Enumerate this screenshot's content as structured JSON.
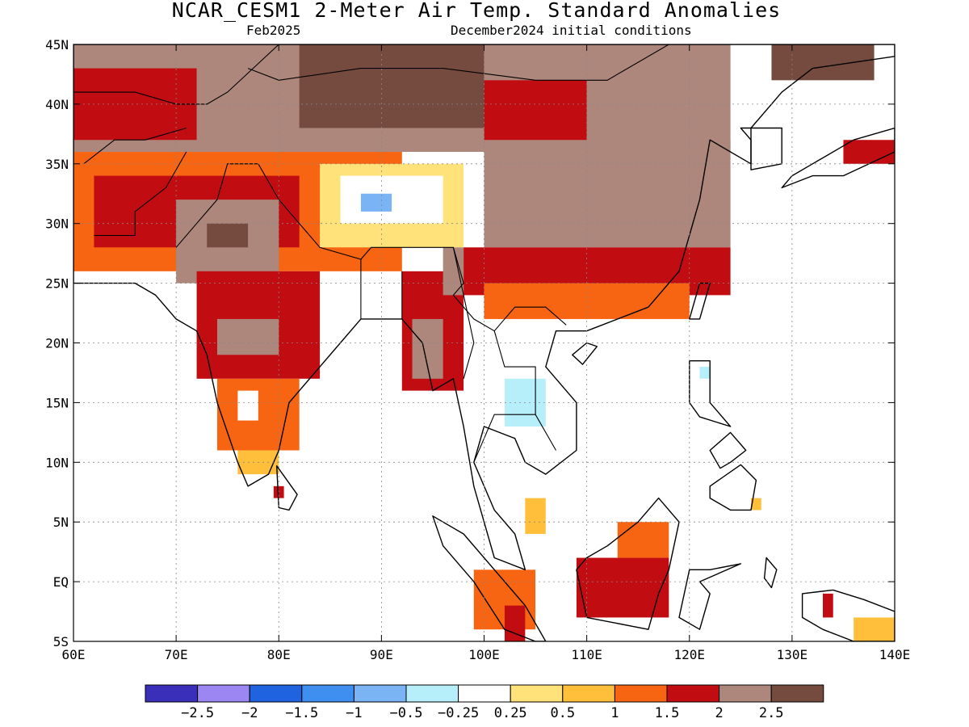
{
  "title": "NCAR_CESM1 2-Meter Air Temp. Standard Anomalies",
  "subtitle_left": "Feb2025",
  "subtitle_right": "December2024 initial conditions",
  "chart_data": {
    "type": "heatmap",
    "variable": "2-Meter Air Temperature Standard Anomaly",
    "lon_range": [
      60,
      140
    ],
    "lat_range": [
      -5,
      45
    ],
    "x_ticks": [
      {
        "value": 60,
        "label": "60E"
      },
      {
        "value": 70,
        "label": "70E"
      },
      {
        "value": 80,
        "label": "80E"
      },
      {
        "value": 90,
        "label": "90E"
      },
      {
        "value": 100,
        "label": "100E"
      },
      {
        "value": 110,
        "label": "110E"
      },
      {
        "value": 120,
        "label": "120E"
      },
      {
        "value": 130,
        "label": "130E"
      },
      {
        "value": 140,
        "label": "140E"
      }
    ],
    "y_ticks": [
      {
        "value": 45,
        "label": "45N"
      },
      {
        "value": 40,
        "label": "40N"
      },
      {
        "value": 35,
        "label": "35N"
      },
      {
        "value": 30,
        "label": "30N"
      },
      {
        "value": 25,
        "label": "25N"
      },
      {
        "value": 20,
        "label": "20N"
      },
      {
        "value": 15,
        "label": "15N"
      },
      {
        "value": 10,
        "label": "10N"
      },
      {
        "value": 5,
        "label": "5N"
      },
      {
        "value": 0,
        "label": "EQ"
      },
      {
        "value": -5,
        "label": "5S"
      }
    ],
    "grid": true,
    "colorbar": {
      "colors": [
        "#3a2fb8",
        "#9b86f2",
        "#1f63e0",
        "#3f8ff0",
        "#7ab4f5",
        "#b6effa",
        "#ffffff",
        "#ffe27a",
        "#ffbf3a",
        "#f76513",
        "#c10d12",
        "#ae877c",
        "#754b40"
      ],
      "labels": [
        "-2.5",
        "-2",
        "-1.5",
        "-1",
        "-0.5",
        "-0.25",
        "0.25",
        "0.5",
        "1",
        "1.5",
        "2",
        "2.5"
      ]
    },
    "regions": [
      {
        "level": 2,
        "lon": [
          60,
          124
        ],
        "lat": [
          36,
          45
        ]
      },
      {
        "level": 2.5,
        "lon": [
          82,
          100
        ],
        "lat": [
          38,
          45
        ]
      },
      {
        "level": 2.5,
        "lon": [
          128,
          138
        ],
        "lat": [
          42,
          45
        ]
      },
      {
        "level": 1.5,
        "lon": [
          60,
          72
        ],
        "lat": [
          37,
          43
        ]
      },
      {
        "level": 1.5,
        "lon": [
          100,
          110
        ],
        "lat": [
          36,
          42
        ]
      },
      {
        "level": 1,
        "lon": [
          60,
          92
        ],
        "lat": [
          26,
          36
        ]
      },
      {
        "level": 1.5,
        "lon": [
          62,
          82
        ],
        "lat": [
          28,
          34
        ]
      },
      {
        "level": 2,
        "lon": [
          70,
          80
        ],
        "lat": [
          25,
          32
        ]
      },
      {
        "level": 2.5,
        "lon": [
          73,
          77
        ],
        "lat": [
          28,
          30
        ]
      },
      {
        "level": 0.25,
        "lon": [
          84,
          98
        ],
        "lat": [
          28,
          35
        ]
      },
      {
        "level": -0.25,
        "lon": [
          86,
          96
        ],
        "lat": [
          30,
          34
        ]
      },
      {
        "level": -1,
        "lon": [
          88,
          91
        ],
        "lat": [
          31,
          32.5
        ]
      },
      {
        "level": 2,
        "lon": [
          100,
          124
        ],
        "lat": [
          28,
          37
        ]
      },
      {
        "level": 1.5,
        "lon": [
          98,
          124
        ],
        "lat": [
          24,
          28
        ]
      },
      {
        "level": 1,
        "lon": [
          100,
          120
        ],
        "lat": [
          22,
          25
        ]
      },
      {
        "level": 1.5,
        "lon": [
          72,
          84
        ],
        "lat": [
          17,
          26
        ]
      },
      {
        "level": 2,
        "lon": [
          74,
          80
        ],
        "lat": [
          19,
          22
        ]
      },
      {
        "level": 1,
        "lon": [
          74,
          82
        ],
        "lat": [
          11,
          17
        ]
      },
      {
        "level": -0.25,
        "lon": [
          76,
          78
        ],
        "lat": [
          13.5,
          16
        ]
      },
      {
        "level": 0.5,
        "lon": [
          76,
          80
        ],
        "lat": [
          9,
          11
        ]
      },
      {
        "level": 1.5,
        "lon": [
          92,
          98
        ],
        "lat": [
          16,
          26
        ]
      },
      {
        "level": 2,
        "lon": [
          93,
          96
        ],
        "lat": [
          17,
          22
        ]
      },
      {
        "level": 2,
        "lon": [
          96,
          98
        ],
        "lat": [
          24,
          28
        ]
      },
      {
        "level": -0.25,
        "lon": [
          100,
          108
        ],
        "lat": [
          11,
          21
        ]
      },
      {
        "level": -0.5,
        "lon": [
          102,
          106
        ],
        "lat": [
          13,
          17
        ]
      },
      {
        "level": 1.5,
        "lon": [
          109,
          118
        ],
        "lat": [
          -3,
          2
        ]
      },
      {
        "level": 1,
        "lon": [
          113,
          118
        ],
        "lat": [
          2,
          5
        ]
      },
      {
        "level": 0.5,
        "lon": [
          104,
          106
        ],
        "lat": [
          4,
          7
        ]
      },
      {
        "level": 1,
        "lon": [
          99,
          105
        ],
        "lat": [
          -4,
          1
        ]
      },
      {
        "level": 1.5,
        "lon": [
          102,
          104
        ],
        "lat": [
          -5,
          -2
        ]
      },
      {
        "level": 0.5,
        "lon": [
          136,
          140
        ],
        "lat": [
          -5,
          -3
        ]
      },
      {
        "level": 1.5,
        "lon": [
          133,
          134
        ],
        "lat": [
          -3,
          -1
        ]
      },
      {
        "level": 1.5,
        "lon": [
          79.5,
          80.5
        ],
        "lat": [
          7,
          8
        ]
      },
      {
        "level": 1.5,
        "lon": [
          135,
          140
        ],
        "lat": [
          35,
          37
        ]
      },
      {
        "level": 0.5,
        "lon": [
          126,
          127
        ],
        "lat": [
          6,
          7
        ]
      },
      {
        "level": -0.5,
        "lon": [
          121,
          122
        ],
        "lat": [
          17,
          18
        ]
      }
    ],
    "landmasses": [
      {
        "name": "asia",
        "coords": [
          [
            60,
            45
          ],
          [
            140,
            45
          ],
          [
            140,
            44
          ],
          [
            132,
            43
          ],
          [
            129,
            41
          ],
          [
            126,
            38
          ],
          [
            126,
            35
          ],
          [
            122,
            37
          ],
          [
            121,
            32
          ],
          [
            119,
            26
          ],
          [
            116,
            23
          ],
          [
            110,
            21
          ],
          [
            107,
            21
          ],
          [
            106,
            18
          ],
          [
            109,
            15
          ],
          [
            109,
            11
          ],
          [
            106,
            9
          ],
          [
            104,
            10
          ],
          [
            103,
            12
          ],
          [
            100,
            13
          ],
          [
            99,
            10
          ],
          [
            101,
            6
          ],
          [
            103,
            4
          ],
          [
            104,
            1
          ],
          [
            101,
            2
          ],
          [
            99,
            8
          ],
          [
            98,
            13
          ],
          [
            97,
            17
          ],
          [
            95,
            16
          ],
          [
            94,
            20
          ],
          [
            92,
            22
          ],
          [
            88,
            22
          ],
          [
            86,
            20
          ],
          [
            84,
            18
          ],
          [
            81,
            15
          ],
          [
            80,
            11
          ],
          [
            79,
            9
          ],
          [
            77,
            8
          ],
          [
            76,
            10
          ],
          [
            74,
            15
          ],
          [
            73,
            19
          ],
          [
            72,
            21
          ],
          [
            70,
            22
          ],
          [
            68,
            24
          ],
          [
            66,
            25
          ],
          [
            62,
            25
          ],
          [
            60,
            25
          ]
        ]
      },
      {
        "name": "korea",
        "coords": [
          [
            125,
            38
          ],
          [
            129,
            38
          ],
          [
            129,
            35
          ],
          [
            126,
            34.5
          ],
          [
            126,
            37
          ]
        ]
      },
      {
        "name": "japan",
        "coords": [
          [
            129,
            33
          ],
          [
            132,
            34
          ],
          [
            135,
            34
          ],
          [
            140,
            36
          ],
          [
            140,
            38
          ],
          [
            136,
            37
          ],
          [
            132,
            35
          ],
          [
            130,
            34
          ]
        ]
      },
      {
        "name": "taiwan",
        "coords": [
          [
            120,
            22
          ],
          [
            121,
            25
          ],
          [
            122,
            25
          ],
          [
            121,
            22
          ]
        ]
      },
      {
        "name": "hainan",
        "coords": [
          [
            108.6,
            19
          ],
          [
            110,
            20
          ],
          [
            111,
            19.7
          ],
          [
            109.6,
            18.2
          ]
        ]
      },
      {
        "name": "sri-lanka",
        "coords": [
          [
            79.8,
            9.7
          ],
          [
            81.8,
            7.3
          ],
          [
            81,
            6
          ],
          [
            80,
            6.2
          ]
        ]
      },
      {
        "name": "borneo",
        "coords": [
          [
            109,
            1
          ],
          [
            110,
            2
          ],
          [
            112,
            3
          ],
          [
            115,
            5
          ],
          [
            117,
            7
          ],
          [
            119,
            5
          ],
          [
            118,
            1
          ],
          [
            117,
            -1
          ],
          [
            116,
            -4
          ],
          [
            110,
            -3
          ]
        ]
      },
      {
        "name": "sumatra",
        "coords": [
          [
            95,
            5.5
          ],
          [
            98,
            4
          ],
          [
            104,
            -2
          ],
          [
            106,
            -5
          ],
          [
            105,
            -5
          ],
          [
            102,
            -4
          ],
          [
            99,
            0
          ],
          [
            96,
            3
          ]
        ]
      },
      {
        "name": "sulawesi",
        "coords": [
          [
            119,
            -3
          ],
          [
            120,
            1
          ],
          [
            122,
            1
          ],
          [
            125,
            1.5
          ],
          [
            121,
            0
          ],
          [
            122,
            -1
          ],
          [
            121,
            -4
          ]
        ]
      },
      {
        "name": "luzon",
        "coords": [
          [
            120,
            18.5
          ],
          [
            122,
            18.5
          ],
          [
            122,
            15
          ],
          [
            124,
            13
          ],
          [
            121,
            13.8
          ],
          [
            120,
            15
          ]
        ]
      },
      {
        "name": "mindanao",
        "coords": [
          [
            122,
            8
          ],
          [
            125,
            9.8
          ],
          [
            126.5,
            8.5
          ],
          [
            126,
            6
          ],
          [
            124,
            6
          ],
          [
            122,
            7
          ]
        ]
      },
      {
        "name": "visayas",
        "coords": [
          [
            122,
            11
          ],
          [
            124,
            12.5
          ],
          [
            125.5,
            11
          ],
          [
            124,
            10
          ],
          [
            123,
            9.5
          ]
        ]
      },
      {
        "name": "new-guinea",
        "coords": [
          [
            131,
            -1
          ],
          [
            134,
            -0.7
          ],
          [
            137,
            -1.5
          ],
          [
            140,
            -2.5
          ],
          [
            140,
            -5
          ],
          [
            136,
            -5
          ],
          [
            133,
            -4
          ],
          [
            131,
            -3
          ]
        ]
      },
      {
        "name": "halmahera",
        "coords": [
          [
            127.5,
            2
          ],
          [
            128.5,
            1
          ],
          [
            128,
            -0.5
          ],
          [
            127.3,
            0.3
          ]
        ]
      }
    ],
    "borders": [
      [
        [
          61,
          35
        ],
        [
          64,
          37
        ],
        [
          67,
          37
        ],
        [
          71,
          38
        ]
      ],
      [
        [
          70,
          28
        ],
        [
          72,
          30
        ],
        [
          74,
          32
        ],
        [
          75,
          35
        ],
        [
          78,
          35
        ],
        [
          80,
          32
        ],
        [
          82,
          30
        ],
        [
          84,
          28
        ],
        [
          88,
          27
        ],
        [
          89,
          28
        ],
        [
          92,
          28
        ],
        [
          97,
          28
        ],
        [
          98,
          25
        ],
        [
          97,
          24
        ],
        [
          99,
          22
        ],
        [
          101,
          21
        ],
        [
          103,
          23
        ],
        [
          106,
          23
        ],
        [
          108,
          21.5
        ]
      ],
      [
        [
          62,
          29
        ],
        [
          66,
          29
        ],
        [
          66,
          31
        ],
        [
          69,
          33
        ],
        [
          71,
          36
        ]
      ],
      [
        [
          88,
          27
        ],
        [
          88,
          22
        ]
      ],
      [
        [
          92,
          26
        ],
        [
          92,
          22
        ]
      ],
      [
        [
          99,
          10
        ],
        [
          101,
          14
        ],
        [
          105,
          14
        ],
        [
          107,
          11
        ]
      ],
      [
        [
          101,
          21
        ],
        [
          102,
          18
        ],
        [
          105,
          18
        ],
        [
          105,
          14
        ]
      ],
      [
        [
          97,
          28
        ],
        [
          98,
          24
        ],
        [
          99,
          20
        ],
        [
          98,
          17
        ]
      ],
      [
        [
          77,
          43
        ],
        [
          80,
          42
        ],
        [
          88,
          43
        ],
        [
          96,
          43
        ],
        [
          105,
          42
        ],
        [
          112,
          42
        ],
        [
          118,
          45
        ]
      ],
      [
        [
          60,
          41
        ],
        [
          66,
          41
        ],
        [
          70,
          40
        ],
        [
          73,
          40
        ],
        [
          75,
          41
        ],
        [
          80,
          45
        ]
      ]
    ]
  }
}
